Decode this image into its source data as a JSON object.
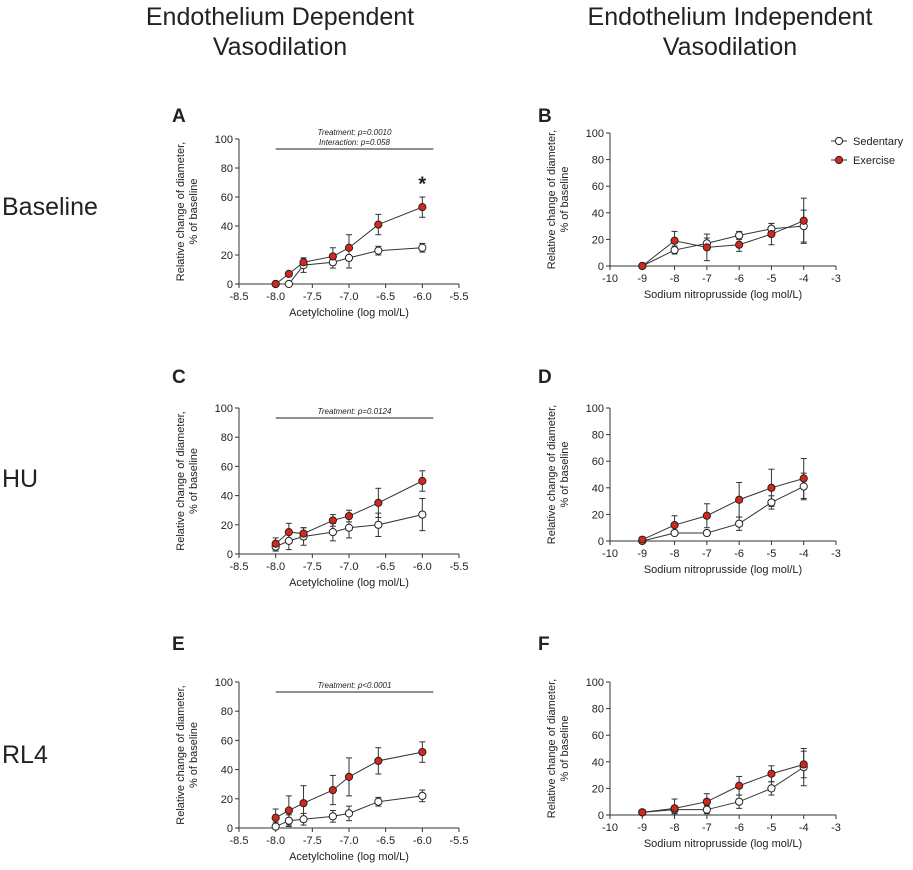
{
  "columns": {
    "left_line1": "Endothelium Dependent",
    "left_line2": "Vasodilation",
    "right_line1": "Endothelium Independent",
    "right_line2": "Vasodilation"
  },
  "rows": [
    "Baseline",
    "HU",
    "RL4"
  ],
  "colors": {
    "sedentary": "#ffffff",
    "exercise": "#d9261c",
    "line": "#333333"
  },
  "chart_data": [
    {
      "panel": "A",
      "type": "line",
      "xlabel": "Acetylcholine (log mol/L)",
      "ylabel1": "Relative change of diameter,",
      "ylabel2": "% of baseline",
      "xlim": [
        -8.5,
        -5.5
      ],
      "ylim": [
        0,
        100
      ],
      "xticks": [
        -8.5,
        -8.0,
        -7.5,
        -7.0,
        -6.5,
        -6.0,
        -5.5
      ],
      "xtick_labels": [
        "-8.5",
        "-8.0",
        "-7.5",
        "-7.0",
        "-6.5",
        "-6.0",
        "-5.5"
      ],
      "yticks": [
        0,
        20,
        40,
        60,
        80,
        100
      ],
      "ytick_labels": [
        "0",
        "20",
        "40",
        "60",
        "80",
        "100"
      ],
      "annotation_lines": [
        "Treatment: p=0.0010",
        "Interaction: p=0.058"
      ],
      "bracket": [
        -8.0,
        -5.85
      ],
      "star": "*",
      "star_x": -6.0,
      "star_y": 70,
      "series": [
        {
          "name": "Sedentary",
          "fill": "#ffffff",
          "x": [
            -8.0,
            -7.82,
            -7.62,
            -7.22,
            -7.0,
            -6.6,
            -6.0
          ],
          "y": [
            0,
            0,
            13,
            15,
            18,
            23,
            25
          ],
          "err": [
            0,
            0,
            5,
            4,
            7,
            3,
            3
          ]
        },
        {
          "name": "Exercise",
          "fill": "#d9261c",
          "x": [
            -8.0,
            -7.82,
            -7.62,
            -7.22,
            -7.0,
            -6.6,
            -6.0
          ],
          "y": [
            0,
            7,
            15,
            19,
            25,
            41,
            53
          ],
          "err": [
            0,
            0,
            3,
            6,
            9,
            7,
            7
          ]
        }
      ]
    },
    {
      "panel": "B",
      "type": "line",
      "xlabel": "Sodium nitroprusside (log mol/L)",
      "ylabel1": "Relative change of diameter,",
      "ylabel2": "% of baseline",
      "xlim": [
        -10,
        -3
      ],
      "ylim": [
        0,
        100
      ],
      "xticks": [
        -10,
        -9,
        -8,
        -7,
        -6,
        -5,
        -4,
        -3
      ],
      "xtick_labels": [
        "-10",
        "-9",
        "-8",
        "-7",
        "-6",
        "-5",
        "-4",
        "-3"
      ],
      "yticks": [
        0,
        20,
        40,
        60,
        80,
        100
      ],
      "ytick_labels": [
        "0",
        "20",
        "40",
        "60",
        "80",
        "100"
      ],
      "legend": true,
      "series": [
        {
          "name": "Sedentary",
          "fill": "#ffffff",
          "x": [
            -9,
            -8,
            -7,
            -6,
            -5,
            -4
          ],
          "y": [
            0,
            12,
            17,
            23,
            28,
            30
          ],
          "err": [
            0,
            3,
            4,
            3,
            4,
            12
          ]
        },
        {
          "name": "Exercise",
          "fill": "#d9261c",
          "x": [
            -9,
            -8,
            -7,
            -6,
            -5,
            -4
          ],
          "y": [
            0,
            19,
            14,
            16,
            24,
            34
          ],
          "err": [
            0,
            7,
            10,
            5,
            8,
            17
          ]
        }
      ]
    },
    {
      "panel": "C",
      "type": "line",
      "xlabel": "Acetylcholine (log mol/L)",
      "ylabel1": "Relative change of diameter,",
      "ylabel2": "% of baseline",
      "xlim": [
        -8.5,
        -5.5
      ],
      "ylim": [
        0,
        100
      ],
      "xticks": [
        -8.5,
        -8.0,
        -7.5,
        -7.0,
        -6.5,
        -6.0,
        -5.5
      ],
      "xtick_labels": [
        "-8.5",
        "-8.0",
        "-7.5",
        "-7.0",
        "-6.5",
        "-6.0",
        "-5.5"
      ],
      "yticks": [
        0,
        20,
        40,
        60,
        80,
        100
      ],
      "ytick_labels": [
        "0",
        "20",
        "40",
        "60",
        "80",
        "100"
      ],
      "annotation_lines": [
        "Treatment: p=0.0124"
      ],
      "bracket": [
        -8.0,
        -5.85
      ],
      "series": [
        {
          "name": "Sedentary",
          "fill": "#ffffff",
          "x": [
            -8.0,
            -7.82,
            -7.62,
            -7.22,
            -7.0,
            -6.6,
            -6.0
          ],
          "y": [
            5,
            9,
            12,
            15,
            18,
            20,
            27
          ],
          "err": [
            3,
            6,
            6,
            6,
            7,
            8,
            11
          ]
        },
        {
          "name": "Exercise",
          "fill": "#d9261c",
          "x": [
            -8.0,
            -7.82,
            -7.62,
            -7.22,
            -7.0,
            -6.6,
            -6.0
          ],
          "y": [
            7,
            15,
            14,
            23,
            26,
            35,
            50
          ],
          "err": [
            4,
            6,
            4,
            4,
            4,
            10,
            7
          ]
        }
      ]
    },
    {
      "panel": "D",
      "type": "line",
      "xlabel": "Sodium nitroprusside (log mol/L)",
      "ylabel1": "Relative change of diameter,",
      "ylabel2": "% of baseline",
      "xlim": [
        -10,
        -3
      ],
      "ylim": [
        0,
        100
      ],
      "xticks": [
        -10,
        -9,
        -8,
        -7,
        -6,
        -5,
        -4,
        -3
      ],
      "xtick_labels": [
        "-10",
        "-9",
        "-8",
        "-7",
        "-6",
        "-5",
        "-4",
        "-3"
      ],
      "yticks": [
        0,
        20,
        40,
        60,
        80,
        100
      ],
      "ytick_labels": [
        "0",
        "20",
        "40",
        "60",
        "80",
        "100"
      ],
      "series": [
        {
          "name": "Sedentary",
          "fill": "#ffffff",
          "x": [
            -9,
            -8,
            -7,
            -6,
            -5,
            -4
          ],
          "y": [
            0,
            6,
            6,
            13,
            29,
            41
          ],
          "err": [
            0,
            2,
            2,
            5,
            5,
            10
          ]
        },
        {
          "name": "Exercise",
          "fill": "#d9261c",
          "x": [
            -9,
            -8,
            -7,
            -6,
            -5,
            -4
          ],
          "y": [
            1,
            12,
            19,
            31,
            40,
            47
          ],
          "err": [
            2,
            7,
            9,
            13,
            14,
            15
          ]
        }
      ]
    },
    {
      "panel": "E",
      "type": "line",
      "xlabel": "Acetylcholine (log mol/L)",
      "ylabel1": "Relative change of diameter,",
      "ylabel2": "% of baseline",
      "xlim": [
        -8.5,
        -5.5
      ],
      "ylim": [
        0,
        100
      ],
      "xticks": [
        -8.5,
        -8.0,
        -7.5,
        -7.0,
        -6.5,
        -6.0,
        -5.5
      ],
      "xtick_labels": [
        "-8.5",
        "-8.0",
        "-7.5",
        "-7.0",
        "-6.5",
        "-6.0",
        "-5.5"
      ],
      "yticks": [
        0,
        20,
        40,
        60,
        80,
        100
      ],
      "ytick_labels": [
        "0",
        "20",
        "40",
        "60",
        "80",
        "100"
      ],
      "annotation_lines": [
        "Treatment: p<0.0001"
      ],
      "bracket": [
        -8.0,
        -5.85
      ],
      "series": [
        {
          "name": "Sedentary",
          "fill": "#ffffff",
          "x": [
            -8.0,
            -7.82,
            -7.62,
            -7.22,
            -7.0,
            -6.6,
            -6.0
          ],
          "y": [
            1,
            5,
            6,
            8,
            10,
            18,
            22
          ],
          "err": [
            3,
            4,
            4,
            4,
            5,
            3,
            4
          ]
        },
        {
          "name": "Exercise",
          "fill": "#d9261c",
          "x": [
            -8.0,
            -7.82,
            -7.62,
            -7.22,
            -7.0,
            -6.6,
            -6.0
          ],
          "y": [
            7,
            12,
            17,
            26,
            35,
            46,
            52
          ],
          "err": [
            6,
            10,
            12,
            10,
            13,
            9,
            7
          ]
        }
      ]
    },
    {
      "panel": "F",
      "type": "line",
      "xlabel": "Sodium nitroprusside (log mol/L)",
      "ylabel1": "Relative change of diameter,",
      "ylabel2": "% of baseline",
      "xlim": [
        -10,
        -3
      ],
      "ylim": [
        0,
        100
      ],
      "xticks": [
        -10,
        -9,
        -8,
        -7,
        -6,
        -5,
        -4,
        -3
      ],
      "xtick_labels": [
        "-10",
        "-9",
        "-8",
        "-7",
        "-6",
        "-5",
        "-4",
        "-3"
      ],
      "yticks": [
        0,
        20,
        40,
        60,
        80,
        100
      ],
      "ytick_labels": [
        "0",
        "20",
        "40",
        "60",
        "80",
        "100"
      ],
      "series": [
        {
          "name": "Sedentary",
          "fill": "#ffffff",
          "x": [
            -9,
            -8,
            -7,
            -6,
            -5,
            -4
          ],
          "y": [
            2,
            4,
            4,
            10,
            20,
            36
          ],
          "err": [
            2,
            3,
            3,
            5,
            5,
            14
          ]
        },
        {
          "name": "Exercise",
          "fill": "#d9261c",
          "x": [
            -9,
            -8,
            -7,
            -6,
            -5,
            -4
          ],
          "y": [
            2,
            5,
            10,
            22,
            31,
            38
          ],
          "err": [
            2,
            7,
            6,
            7,
            6,
            10
          ]
        }
      ]
    }
  ]
}
